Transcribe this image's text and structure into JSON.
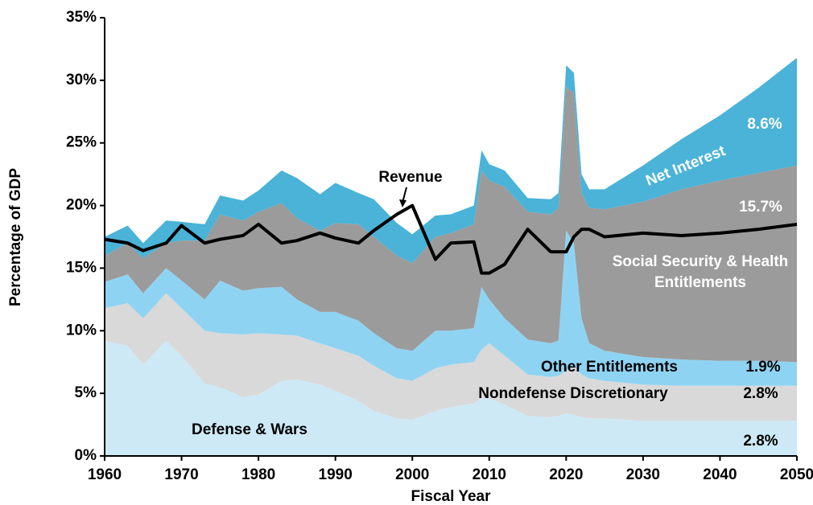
{
  "chart_data": {
    "type": "stacked_area",
    "xlabel": "Fiscal Year",
    "ylabel": "Percentage of GDP",
    "x": [
      1960,
      1963,
      1965,
      1968,
      1970,
      1973,
      1975,
      1978,
      1980,
      1983,
      1985,
      1988,
      1990,
      1993,
      1995,
      1998,
      2000,
      2003,
      2005,
      2008,
      2009,
      2010,
      2012,
      2015,
      2018,
      2019,
      2020,
      2021,
      2022,
      2023,
      2025,
      2030,
      2035,
      2040,
      2045,
      2050
    ],
    "series": [
      {
        "name": "Defense & Wars",
        "end_label": "2.8%",
        "color": "#cde9f6",
        "values": [
          9.2,
          8.8,
          7.3,
          9.2,
          8.0,
          5.8,
          5.5,
          4.7,
          4.9,
          6.0,
          6.1,
          5.7,
          5.2,
          4.4,
          3.6,
          3.0,
          2.9,
          3.6,
          3.9,
          4.2,
          4.6,
          4.6,
          4.1,
          3.2,
          3.1,
          3.2,
          3.4,
          3.3,
          3.1,
          3.0,
          3.0,
          2.8,
          2.8,
          2.8,
          2.8,
          2.8
        ]
      },
      {
        "name": "Nondefense Discretionary",
        "end_label": "2.8%",
        "color": "#d9d9d9",
        "values": [
          2.6,
          3.4,
          3.7,
          3.8,
          3.8,
          4.2,
          4.3,
          5.0,
          4.9,
          3.7,
          3.5,
          3.3,
          3.4,
          3.6,
          3.6,
          3.2,
          3.1,
          3.4,
          3.4,
          3.3,
          3.9,
          4.4,
          3.9,
          3.3,
          3.2,
          3.2,
          3.4,
          3.9,
          3.4,
          3.2,
          3.0,
          2.9,
          2.8,
          2.8,
          2.8,
          2.8
        ]
      },
      {
        "name": "Other Entitlements",
        "end_label": "1.9%",
        "color": "#8fd3f3",
        "values": [
          2.1,
          2.3,
          2.0,
          2.0,
          2.2,
          2.5,
          4.2,
          3.5,
          3.6,
          3.8,
          2.9,
          2.5,
          2.9,
          2.8,
          2.6,
          2.4,
          2.4,
          3.0,
          2.7,
          2.7,
          5.0,
          3.5,
          3.0,
          2.8,
          2.7,
          2.8,
          11.2,
          9.8,
          4.5,
          2.8,
          2.4,
          2.2,
          2.1,
          2.0,
          2.0,
          1.9
        ]
      },
      {
        "name": "Social Security & Health Entitlements",
        "end_label": "15.7%",
        "color": "#9b9b9b",
        "values": [
          2.1,
          2.5,
          2.8,
          2.0,
          3.2,
          4.7,
          5.3,
          5.6,
          6.1,
          6.7,
          6.5,
          6.5,
          7.1,
          7.7,
          7.7,
          7.4,
          7.0,
          7.5,
          7.8,
          8.3,
          9.3,
          9.5,
          10.5,
          10.2,
          10.3,
          10.6,
          11.5,
          12.0,
          10.0,
          10.8,
          11.3,
          12.4,
          13.6,
          14.4,
          15.0,
          15.7
        ]
      },
      {
        "name": "Net Interest",
        "end_label": "8.6%",
        "color": "#4ab3d7",
        "values": [
          1.5,
          1.4,
          1.2,
          1.8,
          1.5,
          1.3,
          1.5,
          1.6,
          1.7,
          2.6,
          3.2,
          2.9,
          3.2,
          2.5,
          3.0,
          2.6,
          2.3,
          1.7,
          1.5,
          1.5,
          1.6,
          1.3,
          1.3,
          1.1,
          1.2,
          1.2,
          1.7,
          1.6,
          1.5,
          1.5,
          1.6,
          2.9,
          4.0,
          5.2,
          6.8,
          8.6
        ]
      }
    ],
    "line": {
      "name": "Revenue",
      "color": "#000000",
      "values": [
        17.3,
        17.0,
        16.4,
        17.0,
        18.4,
        17.0,
        17.3,
        17.6,
        18.5,
        17.0,
        17.2,
        17.8,
        17.4,
        17.0,
        18.0,
        19.3,
        20.0,
        15.7,
        17.0,
        17.1,
        14.6,
        14.6,
        15.3,
        18.1,
        16.3,
        16.3,
        16.3,
        17.5,
        18.1,
        18.1,
        17.5,
        17.8,
        17.6,
        17.8,
        18.1,
        18.5
      ]
    },
    "xlim": [
      1960,
      2050
    ],
    "xticks": [
      1960,
      1970,
      1980,
      1990,
      2000,
      2010,
      2020,
      2030,
      2040,
      2050
    ],
    "ylim": [
      0,
      35
    ],
    "yticks": [
      {
        "value": 0,
        "label": "0%"
      },
      {
        "value": 5,
        "label": "5%"
      },
      {
        "value": 10,
        "label": "10%"
      },
      {
        "value": 15,
        "label": "15%"
      },
      {
        "value": 20,
        "label": "20%"
      },
      {
        "value": 25,
        "label": "25%"
      },
      {
        "value": 30,
        "label": "30%"
      },
      {
        "value": 35,
        "label": "35%"
      }
    ],
    "grid": false
  }
}
